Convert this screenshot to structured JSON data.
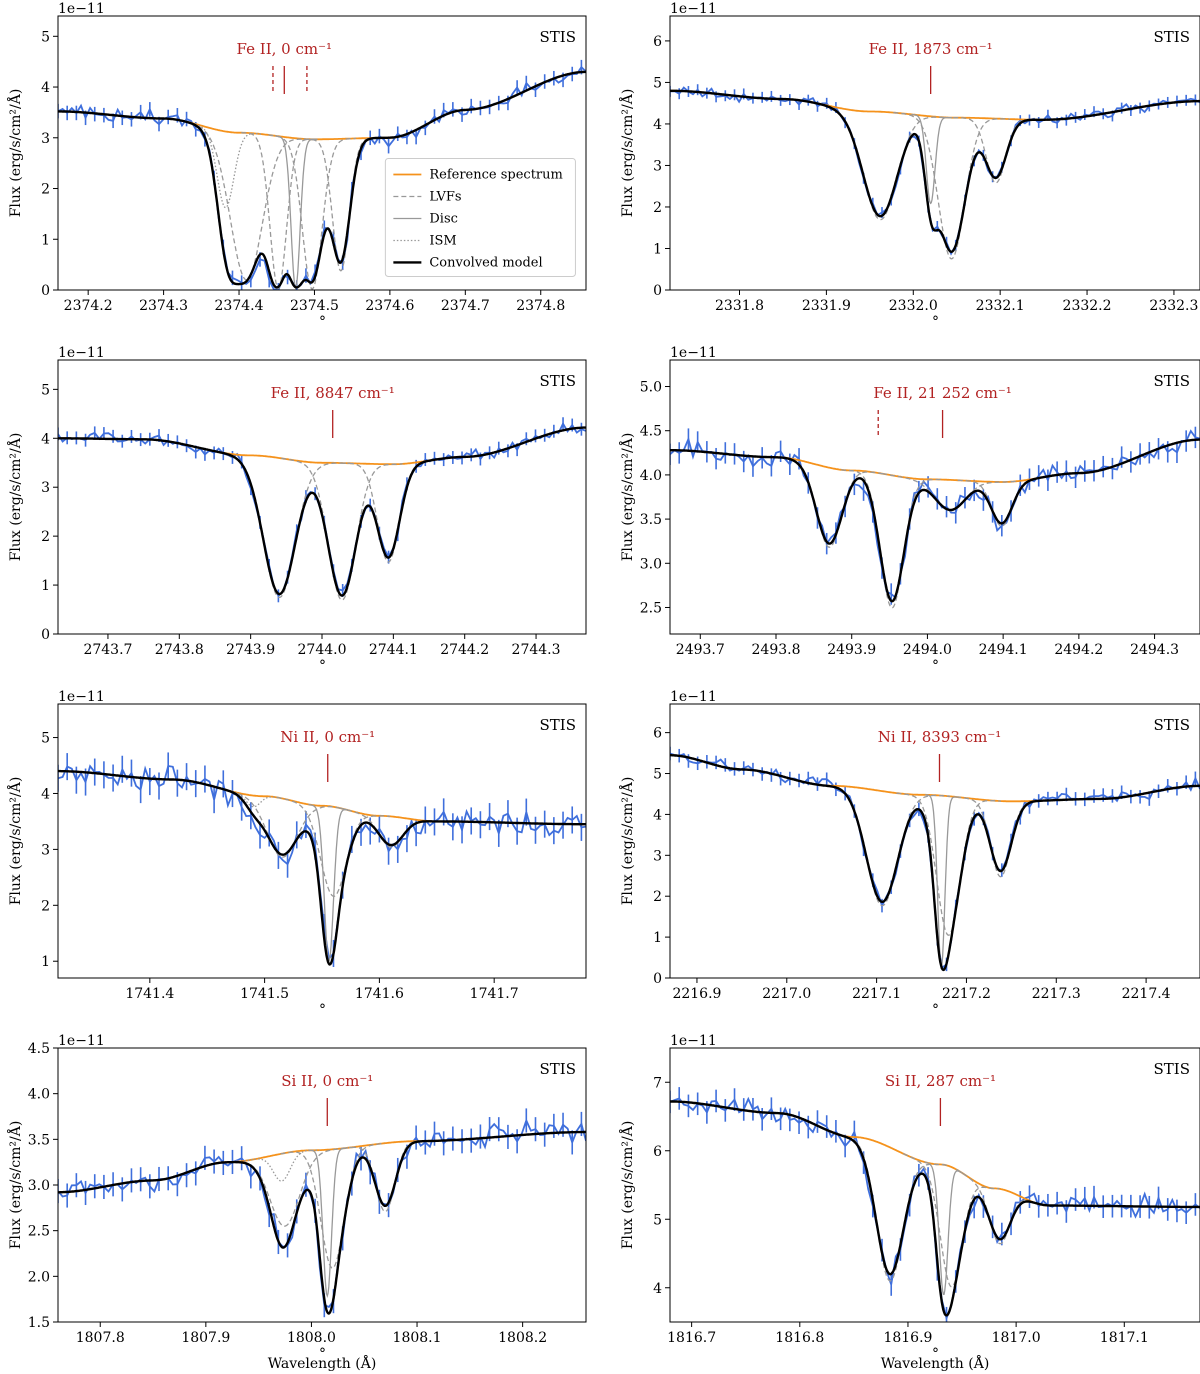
{
  "figure": {
    "xlabel": "Wavelength (Å)",
    "ylabel": "Flux (erg/s/cm²/Å)",
    "scale_label": "1e−11",
    "instrument_label": "STIS",
    "colors": {
      "data": "#3f6fdc",
      "reference": "#f5921b",
      "component": "#999999",
      "model": "#000000",
      "line_marker": "#b22222"
    },
    "legend": [
      "Reference spectrum",
      "LVFs",
      "Disc",
      "ISM",
      "Convolved model"
    ]
  },
  "chart_data": [
    {
      "type": "line",
      "ion_label": "Fe II, 0 cm⁻¹",
      "instrument": "STIS",
      "xlim": [
        2374.16,
        2374.86
      ],
      "ylim": [
        0,
        5.4
      ],
      "xticks": [
        2374.2,
        2374.3,
        2374.4,
        2374.5,
        2374.6,
        2374.7,
        2374.8
      ],
      "yticks": [
        0,
        1,
        2,
        3,
        4,
        5
      ],
      "ref": [
        [
          2374.16,
          3.52
        ],
        [
          2374.3,
          3.38
        ],
        [
          2374.4,
          3.1
        ],
        [
          2374.5,
          2.97
        ],
        [
          2374.6,
          3.0
        ],
        [
          2374.7,
          3.55
        ],
        [
          2374.86,
          4.3
        ]
      ],
      "lines": [
        {
          "center": 2374.46,
          "solid": true
        },
        {
          "center": 2374.445,
          "solid": false
        },
        {
          "center": 2374.49,
          "solid": false
        }
      ],
      "comps": [
        {
          "kind": "ism",
          "center": 2374.382,
          "depth": 1.5,
          "width": 0.011
        },
        {
          "kind": "lvf",
          "center": 2374.41,
          "depth": 2.9,
          "width": 0.021
        },
        {
          "kind": "lvf",
          "center": 2374.452,
          "depth": 3.0,
          "width": 0.011
        },
        {
          "kind": "disc",
          "center": 2374.475,
          "depth": 2.95,
          "width": 0.006
        },
        {
          "kind": "lvf",
          "center": 2374.497,
          "depth": 2.95,
          "width": 0.013
        },
        {
          "kind": "lvf",
          "center": 2374.535,
          "depth": 2.6,
          "width": 0.011
        }
      ],
      "model_sigma": 0.005,
      "noise": 0.13,
      "legend": true
    },
    {
      "type": "line",
      "ion_label": "Fe II, 1873 cm⁻¹",
      "instrument": "STIS",
      "xlim": [
        2331.72,
        2332.33
      ],
      "ylim": [
        0,
        6.6
      ],
      "xticks": [
        2331.8,
        2331.9,
        2332.0,
        2332.1,
        2332.2,
        2332.3
      ],
      "yticks": [
        0,
        1,
        2,
        3,
        4,
        5,
        6
      ],
      "ref": [
        [
          2331.72,
          4.8
        ],
        [
          2331.85,
          4.6
        ],
        [
          2331.95,
          4.3
        ],
        [
          2332.05,
          4.15
        ],
        [
          2332.15,
          4.1
        ],
        [
          2332.33,
          4.55
        ]
      ],
      "lines": [
        {
          "center": 2332.02,
          "solid": true
        }
      ],
      "comps": [
        {
          "kind": "lvf",
          "center": 2331.962,
          "depth": 2.6,
          "width": 0.019
        },
        {
          "kind": "disc",
          "center": 2332.02,
          "depth": 2.1,
          "width": 0.005
        },
        {
          "kind": "lvf",
          "center": 2332.044,
          "depth": 3.4,
          "width": 0.015
        },
        {
          "kind": "lvf",
          "center": 2332.095,
          "depth": 1.55,
          "width": 0.011
        }
      ],
      "model_sigma": 0.005,
      "noise": 0.12,
      "legend": false
    },
    {
      "type": "line",
      "ion_label": "Fe II, 8847 cm⁻¹",
      "instrument": "STIS",
      "xlim": [
        2743.63,
        2744.37
      ],
      "ylim": [
        0,
        5.6
      ],
      "xticks": [
        2743.7,
        2743.8,
        2743.9,
        2744.0,
        2744.1,
        2744.2,
        2744.3
      ],
      "yticks": [
        0,
        1,
        2,
        3,
        4,
        5
      ],
      "ref": [
        [
          2743.63,
          4.0
        ],
        [
          2743.75,
          3.98
        ],
        [
          2743.9,
          3.65
        ],
        [
          2744.0,
          3.5
        ],
        [
          2744.1,
          3.47
        ],
        [
          2744.2,
          3.62
        ],
        [
          2744.37,
          4.22
        ]
      ],
      "lines": [
        {
          "center": 2744.015,
          "solid": true
        }
      ],
      "comps": [
        {
          "kind": "lvf",
          "center": 2743.94,
          "depth": 2.85,
          "width": 0.022
        },
        {
          "kind": "lvf",
          "center": 2744.028,
          "depth": 2.8,
          "width": 0.019
        },
        {
          "kind": "lvf",
          "center": 2744.093,
          "depth": 2.0,
          "width": 0.015
        }
      ],
      "model_sigma": 0.005,
      "noise": 0.12,
      "legend": false
    },
    {
      "type": "line",
      "ion_label": "Fe II, 21 252 cm⁻¹",
      "instrument": "STIS",
      "xlim": [
        2493.66,
        2494.36
      ],
      "ylim": [
        2.2,
        5.3
      ],
      "xticks": [
        2493.7,
        2493.8,
        2493.9,
        2494.0,
        2494.1,
        2494.2,
        2494.3
      ],
      "yticks": [
        2.5,
        3.0,
        3.5,
        4.0,
        4.5,
        5.0
      ],
      "ref": [
        [
          2493.66,
          4.28
        ],
        [
          2493.8,
          4.2
        ],
        [
          2493.9,
          4.05
        ],
        [
          2494.0,
          3.95
        ],
        [
          2494.1,
          3.92
        ],
        [
          2494.2,
          4.02
        ],
        [
          2494.36,
          4.4
        ]
      ],
      "lines": [
        {
          "center": 2494.02,
          "solid": true
        },
        {
          "center": 2493.935,
          "solid": false
        }
      ],
      "comps": [
        {
          "kind": "lvf",
          "center": 2493.87,
          "depth": 0.9,
          "width": 0.016
        },
        {
          "kind": "lvf",
          "center": 2493.953,
          "depth": 1.5,
          "width": 0.015
        },
        {
          "kind": "lvf",
          "center": 2494.03,
          "depth": 0.35,
          "width": 0.02
        },
        {
          "kind": "lvf",
          "center": 2494.098,
          "depth": 0.5,
          "width": 0.013
        }
      ],
      "model_sigma": 0.005,
      "noise": 0.11,
      "legend": false
    },
    {
      "type": "line",
      "ion_label": "Ni II, 0 cm⁻¹",
      "instrument": "STIS",
      "xlim": [
        1741.32,
        1741.78
      ],
      "ylim": [
        0.7,
        5.6
      ],
      "xticks": [
        1741.4,
        1741.5,
        1741.6,
        1741.7
      ],
      "yticks": [
        1,
        2,
        3,
        4,
        5
      ],
      "ref": [
        [
          1741.32,
          4.4
        ],
        [
          1741.42,
          4.25
        ],
        [
          1741.5,
          3.95
        ],
        [
          1741.55,
          3.78
        ],
        [
          1741.6,
          3.6
        ],
        [
          1741.65,
          3.5
        ],
        [
          1741.78,
          3.45
        ]
      ],
      "lines": [
        {
          "center": 1741.555,
          "solid": true
        }
      ],
      "comps": [
        {
          "kind": "ism",
          "center": 1741.49,
          "depth": 0.2,
          "width": 0.006
        },
        {
          "kind": "lvf",
          "center": 1741.515,
          "depth": 1.05,
          "width": 0.013
        },
        {
          "kind": "disc",
          "center": 1741.556,
          "depth": 2.78,
          "width": 0.004
        },
        {
          "kind": "lvf",
          "center": 1741.56,
          "depth": 1.6,
          "width": 0.011
        },
        {
          "kind": "lvf",
          "center": 1741.61,
          "depth": 0.55,
          "width": 0.01
        }
      ],
      "model_sigma": 0.004,
      "noise": 0.22,
      "legend": false
    },
    {
      "type": "line",
      "ion_label": "Ni II, 8393 cm⁻¹",
      "instrument": "STIS",
      "xlim": [
        2216.87,
        2217.46
      ],
      "ylim": [
        0,
        6.7
      ],
      "xticks": [
        2216.9,
        2217.0,
        2217.1,
        2217.2,
        2217.3,
        2217.4
      ],
      "yticks": [
        0,
        1,
        2,
        3,
        4,
        5,
        6
      ],
      "ref": [
        [
          2216.87,
          5.45
        ],
        [
          2216.95,
          5.1
        ],
        [
          2217.05,
          4.7
        ],
        [
          2217.15,
          4.48
        ],
        [
          2217.25,
          4.32
        ],
        [
          2217.35,
          4.38
        ],
        [
          2217.46,
          4.7
        ]
      ],
      "lines": [
        {
          "center": 2217.17,
          "solid": true
        }
      ],
      "comps": [
        {
          "kind": "lvf",
          "center": 2217.106,
          "depth": 2.8,
          "width": 0.017
        },
        {
          "kind": "disc",
          "center": 2217.172,
          "depth": 4.2,
          "width": 0.004
        },
        {
          "kind": "lvf",
          "center": 2217.18,
          "depth": 3.4,
          "width": 0.013
        },
        {
          "kind": "lvf",
          "center": 2217.238,
          "depth": 1.85,
          "width": 0.011
        }
      ],
      "model_sigma": 0.0045,
      "noise": 0.15,
      "legend": false
    },
    {
      "type": "line",
      "ion_label": "Si II, 0 cm⁻¹",
      "instrument": "STIS",
      "xlim": [
        1807.76,
        1808.26
      ],
      "ylim": [
        1.5,
        4.5
      ],
      "xticks": [
        1807.8,
        1807.9,
        1808.0,
        1808.1,
        1808.2
      ],
      "yticks": [
        1.5,
        2.0,
        2.5,
        3.0,
        3.5,
        4.0,
        4.5
      ],
      "ref": [
        [
          1807.76,
          2.92
        ],
        [
          1807.85,
          3.05
        ],
        [
          1807.92,
          3.25
        ],
        [
          1808.0,
          3.38
        ],
        [
          1808.1,
          3.48
        ],
        [
          1808.26,
          3.58
        ]
      ],
      "lines": [
        {
          "center": 1808.015,
          "solid": true
        }
      ],
      "comps": [
        {
          "kind": "ism",
          "center": 1807.972,
          "depth": 0.3,
          "width": 0.008
        },
        {
          "kind": "lvf",
          "center": 1807.975,
          "depth": 0.8,
          "width": 0.014
        },
        {
          "kind": "disc",
          "center": 1808.015,
          "depth": 1.6,
          "width": 0.004
        },
        {
          "kind": "lvf",
          "center": 1808.02,
          "depth": 1.3,
          "width": 0.011
        },
        {
          "kind": "lvf",
          "center": 1808.07,
          "depth": 0.75,
          "width": 0.009
        }
      ],
      "model_sigma": 0.004,
      "noise": 0.12,
      "legend": false
    },
    {
      "type": "line",
      "ion_label": "Si II, 287 cm⁻¹",
      "instrument": "STIS",
      "xlim": [
        1816.68,
        1817.17
      ],
      "ylim": [
        3.5,
        7.5
      ],
      "xticks": [
        1816.7,
        1816.8,
        1816.9,
        1817.0,
        1817.1
      ],
      "yticks": [
        4,
        5,
        6,
        7
      ],
      "ref": [
        [
          1816.68,
          6.72
        ],
        [
          1816.78,
          6.55
        ],
        [
          1816.85,
          6.2
        ],
        [
          1816.93,
          5.8
        ],
        [
          1816.98,
          5.45
        ],
        [
          1817.03,
          5.2
        ],
        [
          1817.17,
          5.18
        ]
      ],
      "lines": [
        {
          "center": 1816.93,
          "solid": true
        }
      ],
      "comps": [
        {
          "kind": "lvf",
          "center": 1816.883,
          "depth": 1.95,
          "width": 0.012
        },
        {
          "kind": "disc",
          "center": 1816.933,
          "depth": 1.9,
          "width": 0.004
        },
        {
          "kind": "lvf",
          "center": 1816.94,
          "depth": 1.75,
          "width": 0.01
        },
        {
          "kind": "lvf",
          "center": 1816.985,
          "depth": 0.8,
          "width": 0.009
        }
      ],
      "model_sigma": 0.004,
      "noise": 0.15,
      "legend": false
    }
  ]
}
